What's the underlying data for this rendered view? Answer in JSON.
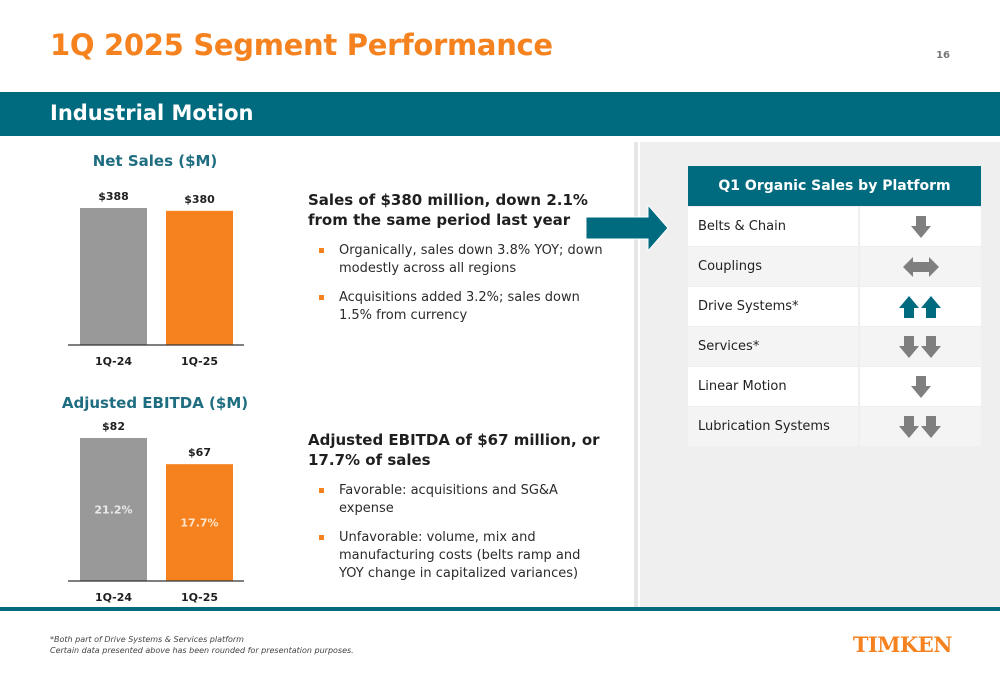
{
  "header": {
    "title": "1Q 2025 Segment Performance",
    "page_number": "16"
  },
  "banner": {
    "title": "Industrial Motion"
  },
  "net_sales": {
    "title": "Net Sales ($M)"
  },
  "ebitda": {
    "title": "Adjusted EBITDA ($M)"
  },
  "chart_data": [
    {
      "type": "bar",
      "title": "Net Sales ($M)",
      "categories": [
        "1Q-24",
        "1Q-25"
      ],
      "values": [
        388,
        380
      ],
      "value_labels": [
        "$388",
        "$380"
      ],
      "colors": [
        "#999999",
        "#f5821f"
      ],
      "ylim": [
        0,
        388
      ],
      "grid": false
    },
    {
      "type": "bar",
      "title": "Adjusted EBITDA ($M)",
      "categories": [
        "1Q-24",
        "1Q-25"
      ],
      "values": [
        82,
        67
      ],
      "value_labels": [
        "$82",
        "$67"
      ],
      "inner_labels": [
        "21.2%",
        "17.7%"
      ],
      "colors": [
        "#999999",
        "#f5821f"
      ],
      "ylim": [
        0,
        82
      ],
      "grid": false
    }
  ],
  "sales_block": {
    "headline": "Sales of $380 million, down 2.1% from the same period last year",
    "bullets": [
      "Organically, sales down 3.8% YOY; down modestly across all regions",
      "Acquisitions added 3.2%; sales down 1.5% from currency"
    ]
  },
  "ebitda_block": {
    "headline": "Adjusted EBITDA of $67 million, or 17.7% of sales",
    "bullets": [
      "Favorable: acquisitions and SG&A expense",
      "Unfavorable: volume, mix and manufacturing costs (belts ramp and YOY change in capitalized variances)"
    ]
  },
  "platform_table": {
    "header": "Q1 Organic Sales by Platform",
    "rows": [
      {
        "name": "Belts & Chain",
        "icon": "arrow-down-single"
      },
      {
        "name": "Couplings",
        "icon": "arrow-left-right"
      },
      {
        "name": "Drive Systems*",
        "icon": "arrow-up-double"
      },
      {
        "name": "Services*",
        "icon": "arrow-down-double"
      },
      {
        "name": "Linear Motion",
        "icon": "arrow-down-single"
      },
      {
        "name": "Lubrication Systems",
        "icon": "arrow-down-double"
      }
    ]
  },
  "footnotes": {
    "line1": "*Both part of Drive Systems & Services platform",
    "line2": "Certain data presented above has been rounded for presentation purposes."
  },
  "logo": {
    "text": "TIMKEN"
  },
  "colors": {
    "accent_orange": "#f5821f",
    "teal": "#006b7f",
    "bar_gray": "#999999",
    "arrow_gray": "#7f7f7f",
    "arrow_teal": "#006b7f"
  }
}
